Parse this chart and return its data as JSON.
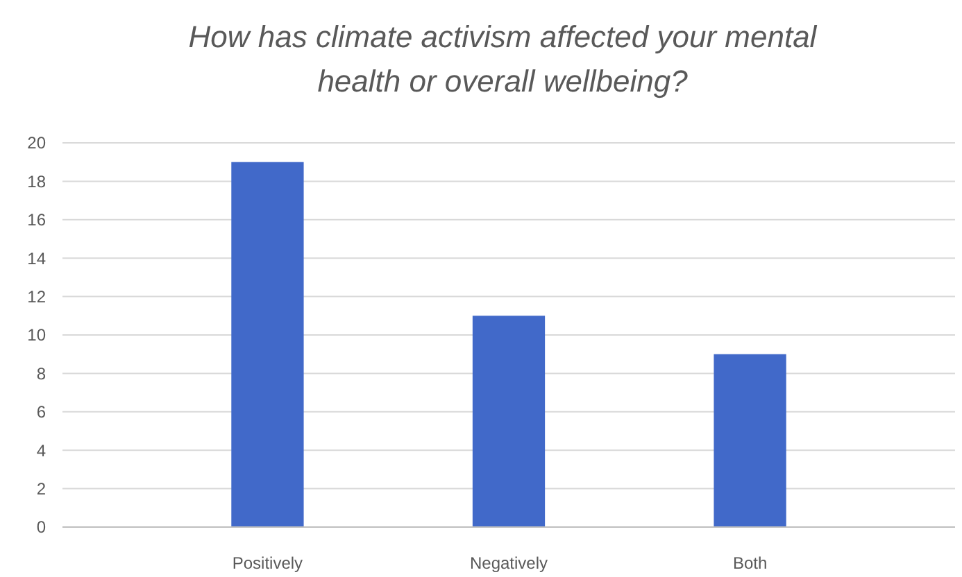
{
  "chart_data": {
    "type": "bar",
    "title": "How has climate activism affected your mental health or overall wellbeing?",
    "categories": [
      "Positively",
      "Negatively",
      "Both"
    ],
    "values": [
      19,
      11,
      9
    ],
    "color": "#4169c9",
    "ylim": [
      0,
      20
    ],
    "yticks": [
      0,
      2,
      4,
      6,
      8,
      10,
      12,
      14,
      16,
      18,
      20
    ],
    "grid": "y"
  }
}
